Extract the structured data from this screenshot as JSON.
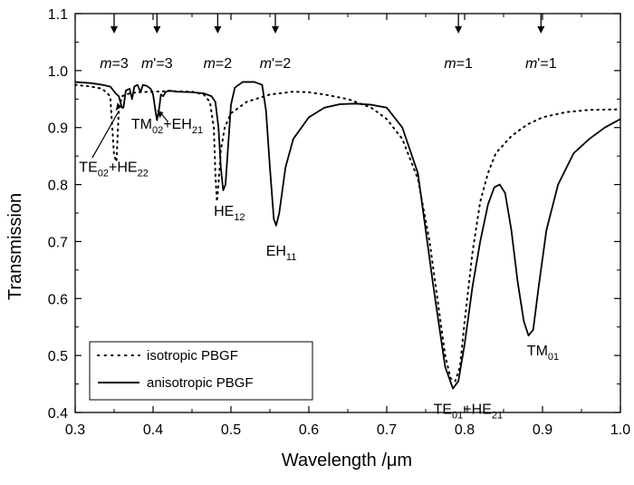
{
  "chart_data": {
    "type": "line",
    "xlabel": "Wavelength /μm",
    "ylabel": "Transmission",
    "xlim": [
      0.3,
      1.0
    ],
    "ylim": [
      0.4,
      1.1
    ],
    "x_ticks": [
      "0.3",
      "0.4",
      "0.5",
      "0.6",
      "0.7",
      "0.8",
      "0.9",
      "1.0"
    ],
    "y_ticks": [
      "0.4",
      "0.5",
      "0.6",
      "0.7",
      "0.8",
      "0.9",
      "1.0",
      "1.1"
    ],
    "legend_position": "bottom-left",
    "series": [
      {
        "name": "isotropic PBGF",
        "style": "dotted",
        "color": "#000000",
        "points": [
          [
            0.3,
            0.975
          ],
          [
            0.32,
            0.972
          ],
          [
            0.335,
            0.968
          ],
          [
            0.345,
            0.955
          ],
          [
            0.35,
            0.85
          ],
          [
            0.353,
            0.84
          ],
          [
            0.356,
            0.93
          ],
          [
            0.36,
            0.955
          ],
          [
            0.37,
            0.96
          ],
          [
            0.38,
            0.962
          ],
          [
            0.4,
            0.963
          ],
          [
            0.42,
            0.964
          ],
          [
            0.45,
            0.963
          ],
          [
            0.465,
            0.958
          ],
          [
            0.473,
            0.945
          ],
          [
            0.478,
            0.9
          ],
          [
            0.48,
            0.82
          ],
          [
            0.482,
            0.77
          ],
          [
            0.484,
            0.8
          ],
          [
            0.487,
            0.86
          ],
          [
            0.492,
            0.9
          ],
          [
            0.5,
            0.925
          ],
          [
            0.52,
            0.945
          ],
          [
            0.55,
            0.958
          ],
          [
            0.58,
            0.963
          ],
          [
            0.6,
            0.962
          ],
          [
            0.62,
            0.958
          ],
          [
            0.65,
            0.95
          ],
          [
            0.68,
            0.935
          ],
          [
            0.7,
            0.915
          ],
          [
            0.72,
            0.88
          ],
          [
            0.74,
            0.81
          ],
          [
            0.755,
            0.7
          ],
          [
            0.765,
            0.6
          ],
          [
            0.775,
            0.5
          ],
          [
            0.782,
            0.46
          ],
          [
            0.788,
            0.455
          ],
          [
            0.794,
            0.48
          ],
          [
            0.8,
            0.56
          ],
          [
            0.81,
            0.68
          ],
          [
            0.82,
            0.77
          ],
          [
            0.83,
            0.82
          ],
          [
            0.84,
            0.855
          ],
          [
            0.86,
            0.885
          ],
          [
            0.88,
            0.905
          ],
          [
            0.9,
            0.918
          ],
          [
            0.93,
            0.927
          ],
          [
            0.96,
            0.931
          ],
          [
            1.0,
            0.932
          ]
        ]
      },
      {
        "name": "anisotropic PBGF",
        "style": "solid",
        "color": "#000000",
        "points": [
          [
            0.3,
            0.98
          ],
          [
            0.32,
            0.978
          ],
          [
            0.335,
            0.975
          ],
          [
            0.345,
            0.972
          ],
          [
            0.352,
            0.96
          ],
          [
            0.356,
            0.955
          ],
          [
            0.36,
            0.935
          ],
          [
            0.362,
            0.935
          ],
          [
            0.365,
            0.965
          ],
          [
            0.37,
            0.968
          ],
          [
            0.373,
            0.95
          ],
          [
            0.376,
            0.972
          ],
          [
            0.38,
            0.975
          ],
          [
            0.384,
            0.962
          ],
          [
            0.387,
            0.975
          ],
          [
            0.392,
            0.973
          ],
          [
            0.397,
            0.968
          ],
          [
            0.4,
            0.958
          ],
          [
            0.403,
            0.93
          ],
          [
            0.405,
            0.913
          ],
          [
            0.408,
            0.935
          ],
          [
            0.41,
            0.958
          ],
          [
            0.413,
            0.955
          ],
          [
            0.416,
            0.962
          ],
          [
            0.42,
            0.965
          ],
          [
            0.43,
            0.963
          ],
          [
            0.45,
            0.962
          ],
          [
            0.465,
            0.96
          ],
          [
            0.475,
            0.955
          ],
          [
            0.48,
            0.945
          ],
          [
            0.484,
            0.9
          ],
          [
            0.487,
            0.83
          ],
          [
            0.49,
            0.79
          ],
          [
            0.493,
            0.8
          ],
          [
            0.496,
            0.86
          ],
          [
            0.5,
            0.94
          ],
          [
            0.505,
            0.97
          ],
          [
            0.515,
            0.98
          ],
          [
            0.53,
            0.98
          ],
          [
            0.54,
            0.975
          ],
          [
            0.545,
            0.93
          ],
          [
            0.55,
            0.83
          ],
          [
            0.555,
            0.74
          ],
          [
            0.558,
            0.728
          ],
          [
            0.562,
            0.75
          ],
          [
            0.57,
            0.83
          ],
          [
            0.58,
            0.88
          ],
          [
            0.6,
            0.918
          ],
          [
            0.62,
            0.935
          ],
          [
            0.64,
            0.941
          ],
          [
            0.66,
            0.942
          ],
          [
            0.68,
            0.94
          ],
          [
            0.7,
            0.935
          ],
          [
            0.72,
            0.9
          ],
          [
            0.74,
            0.82
          ],
          [
            0.76,
            0.62
          ],
          [
            0.775,
            0.48
          ],
          [
            0.785,
            0.442
          ],
          [
            0.792,
            0.455
          ],
          [
            0.8,
            0.52
          ],
          [
            0.81,
            0.62
          ],
          [
            0.82,
            0.7
          ],
          [
            0.83,
            0.765
          ],
          [
            0.838,
            0.795
          ],
          [
            0.845,
            0.8
          ],
          [
            0.852,
            0.785
          ],
          [
            0.86,
            0.72
          ],
          [
            0.868,
            0.63
          ],
          [
            0.876,
            0.56
          ],
          [
            0.882,
            0.535
          ],
          [
            0.888,
            0.545
          ],
          [
            0.895,
            0.62
          ],
          [
            0.905,
            0.72
          ],
          [
            0.92,
            0.8
          ],
          [
            0.94,
            0.855
          ],
          [
            0.96,
            0.88
          ],
          [
            0.98,
            0.9
          ],
          [
            1.0,
            0.915
          ]
        ]
      }
    ],
    "mode_markers": [
      {
        "label_main": "m",
        "label_prime": "",
        "label_value": "=3",
        "x": 0.35
      },
      {
        "label_main": "m",
        "label_prime": "'",
        "label_value": "=3",
        "x": 0.405
      },
      {
        "label_main": "m",
        "label_prime": "",
        "label_value": "=2",
        "x": 0.483
      },
      {
        "label_main": "m",
        "label_prime": "'",
        "label_value": "=2",
        "x": 0.557
      },
      {
        "label_main": "m",
        "label_prime": "",
        "label_value": "=1",
        "x": 0.792
      },
      {
        "label_main": "m",
        "label_prime": "'",
        "label_value": "=1",
        "x": 0.898
      }
    ],
    "annotations": [
      {
        "parts": [
          [
            "TM",
            ""
          ],
          [
            "02",
            "sub"
          ],
          [
            "+EH",
            ""
          ],
          [
            "21",
            "sub"
          ]
        ],
        "x": 0.372,
        "y": 0.898
      },
      {
        "parts": [
          [
            "TE",
            ""
          ],
          [
            "02",
            "sub"
          ],
          [
            "+HE",
            ""
          ],
          [
            "22",
            "sub"
          ]
        ],
        "x": 0.305,
        "y": 0.822
      },
      {
        "parts": [
          [
            "HE",
            ""
          ],
          [
            "12",
            "sub"
          ]
        ],
        "x": 0.478,
        "y": 0.745
      },
      {
        "parts": [
          [
            "EH",
            ""
          ],
          [
            "11",
            "sub"
          ]
        ],
        "x": 0.545,
        "y": 0.675
      },
      {
        "parts": [
          [
            "TE",
            ""
          ],
          [
            "01",
            "sub"
          ],
          [
            "+HE",
            ""
          ],
          [
            "21",
            "sub"
          ]
        ],
        "x": 0.76,
        "y": 0.398
      },
      {
        "parts": [
          [
            "TM",
            ""
          ],
          [
            "01",
            "sub"
          ]
        ],
        "x": 0.88,
        "y": 0.5
      }
    ]
  }
}
